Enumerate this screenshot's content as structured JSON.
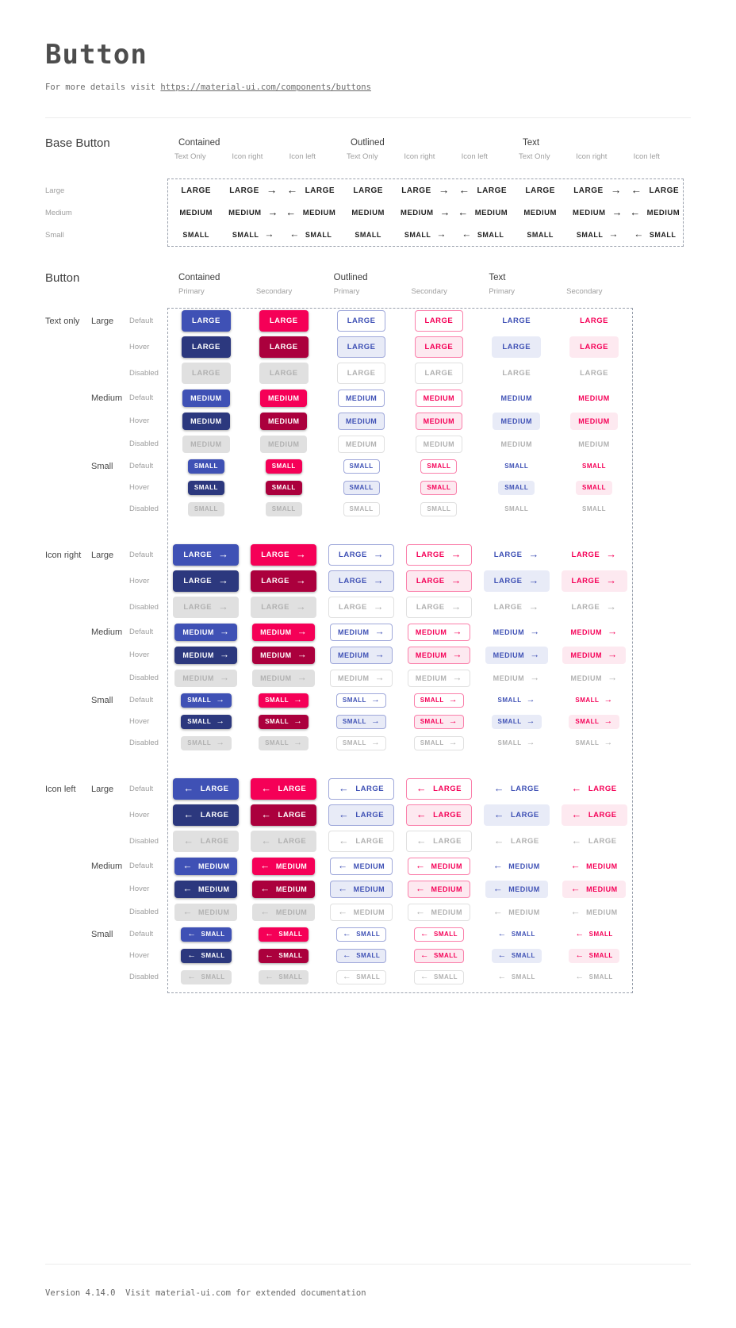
{
  "page": {
    "title": "Button",
    "subtitle_prefix": "For more details visit ",
    "subtitle_link": "https://material-ui.com/components/buttons",
    "footer": "Version 4.14.0  Visit material-ui.com for extended documentation"
  },
  "colors": {
    "primary": "#3f51b5",
    "primary_dark": "#2c387e",
    "primary_border": "#9fa8da",
    "primary_tint": "#e8ebf7",
    "secondary": "#f50057",
    "secondary_dark": "#ab003d",
    "secondary_border": "#fa80ab",
    "secondary_tint": "#fde9f0",
    "disabled_bg": "#e0e0e0",
    "disabled_text": "#b1b1b1",
    "base_text": "#212121"
  },
  "icons": {
    "arrow_right": "→",
    "arrow_left": "←"
  },
  "base_section": {
    "title": "Base Button",
    "groups": [
      "Contained",
      "Outlined",
      "Text"
    ],
    "subcolumns": [
      "Text Only",
      "Icon right",
      "Icon left"
    ],
    "sizes": [
      {
        "label": "Large",
        "text": "LARGE"
      },
      {
        "label": "Medium",
        "text": "MEDIUM"
      },
      {
        "label": "Small",
        "text": "SMALL"
      }
    ]
  },
  "button_section": {
    "title": "Button",
    "groups": [
      "Contained",
      "Outlined",
      "Text"
    ],
    "subcolumns": [
      "Primary",
      "Secondary"
    ],
    "icon_groups": [
      {
        "label": "Text only",
        "icon": "none"
      },
      {
        "label": "Icon right",
        "icon": "right"
      },
      {
        "label": "Icon left",
        "icon": "left"
      }
    ],
    "sizes": [
      {
        "label": "Large",
        "text": "LARGE"
      },
      {
        "label": "Medium",
        "text": "MEDIUM"
      },
      {
        "label": "Small",
        "text": "SMALL"
      }
    ],
    "states": [
      "Default",
      "Hover",
      "Disabled"
    ]
  }
}
